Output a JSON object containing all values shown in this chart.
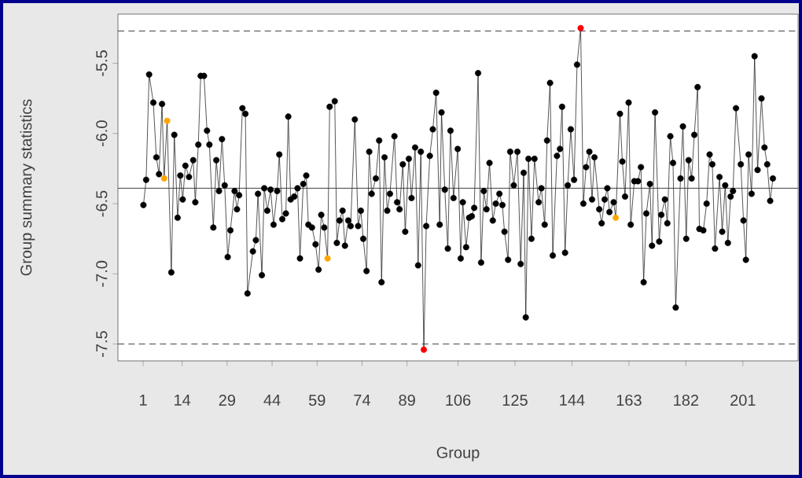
{
  "chart_data": {
    "type": "line",
    "xlabel": "Group",
    "ylabel": "Group summary statistics",
    "x": [
      1.1,
      2.0,
      3.0,
      4.4,
      5.4,
      6.3,
      7.3,
      8.0,
      9.0,
      10.4,
      11.4,
      12.5,
      13.4,
      14.2,
      15.1,
      16.3,
      17.7,
      18.4,
      19.4,
      20.2,
      21.3,
      22.3,
      23.1,
      24.4,
      25.4,
      26.3,
      27.3,
      28.2,
      29.2,
      30.1,
      31.5,
      32.3,
      33.0,
      34.1,
      35.1,
      35.8,
      37.6,
      38.6,
      39.3,
      40.6,
      41.4,
      42.4,
      43.5,
      44.5,
      45.7,
      46.4,
      47.4,
      48.6,
      49.4,
      50.2,
      51.4,
      52.5,
      53.3,
      54.4,
      55.4,
      56.1,
      57.3,
      58.5,
      59.5,
      60.4,
      61.4,
      62.5,
      63.2,
      64.9,
      65.6,
      66.5,
      67.5,
      68.3,
      69.4,
      70.2,
      71.6,
      72.7,
      73.6,
      74.4,
      75.5,
      76.4,
      77.2,
      78.6,
      79.7,
      80.5,
      81.5,
      82.4,
      83.3,
      84.8,
      85.7,
      86.5,
      87.6,
      88.4,
      89.6,
      90.5,
      91.7,
      92.7,
      93.6,
      94.6,
      95.4,
      96.6,
      97.6,
      98.7,
      99.9,
      100.5,
      101.6,
      102.6,
      103.5,
      104.5,
      105.9,
      106.9,
      107.6,
      108.7,
      109.7,
      110.6,
      111.4,
      112.7,
      113.7,
      114.6,
      115.5,
      116.5,
      117.6,
      118.6,
      119.8,
      120.8,
      121.5,
      122.7,
      123.4,
      124.6,
      125.8,
      126.9,
      127.9,
      128.6,
      129.5,
      130.5,
      131.5,
      132.9,
      133.8,
      134.9,
      135.7,
      136.7,
      137.6,
      139.0,
      140.0,
      140.7,
      141.7,
      142.6,
      143.6,
      144.7,
      145.7,
      146.9,
      147.8,
      148.7,
      149.8,
      150.7,
      151.5,
      153.1,
      153.9,
      154.9,
      155.8,
      156.5,
      157.9,
      158.6,
      160.0,
      160.8,
      161.7,
      162.9,
      163.6,
      164.8,
      166.0,
      167.0,
      167.9,
      168.8,
      170.0,
      170.7,
      171.7,
      173.1,
      173.8,
      175.0,
      175.8,
      176.8,
      177.7,
      178.6,
      180.2,
      181.0,
      182.1,
      182.9,
      183.9,
      184.8,
      185.9,
      186.5,
      187.8,
      188.9,
      189.9,
      190.8,
      191.7,
      193.2,
      194.1,
      195.1,
      196.0,
      196.9,
      197.7,
      198.7,
      200.3,
      201.2,
      202.0,
      202.9,
      203.9,
      204.9,
      205.9,
      207.2,
      208.2,
      209.1,
      210.1,
      211.0
    ],
    "values": [
      -6.51,
      -6.33,
      -5.58,
      -5.78,
      -6.17,
      -6.29,
      -5.79,
      -6.32,
      -5.91,
      -6.99,
      -6.01,
      -6.6,
      -6.3,
      -6.47,
      -6.23,
      -6.31,
      -6.19,
      -6.49,
      -6.08,
      -5.59,
      -5.59,
      -5.98,
      -6.08,
      -6.67,
      -6.19,
      -6.41,
      -6.04,
      -6.37,
      -6.88,
      -6.69,
      -6.41,
      -6.54,
      -6.44,
      -5.82,
      -5.86,
      -7.14,
      -6.84,
      -6.76,
      -6.43,
      -7.01,
      -6.39,
      -6.55,
      -6.4,
      -6.65,
      -6.41,
      -6.15,
      -6.61,
      -6.57,
      -5.88,
      -6.47,
      -6.45,
      -6.39,
      -6.89,
      -6.36,
      -6.3,
      -6.65,
      -6.67,
      -6.79,
      -6.97,
      -6.58,
      -6.67,
      -6.89,
      -5.81,
      -5.77,
      -6.78,
      -6.62,
      -6.55,
      -6.8,
      -6.62,
      -6.66,
      -5.9,
      -6.66,
      -6.55,
      -6.75,
      -6.98,
      -6.13,
      -6.43,
      -6.32,
      -6.05,
      -7.06,
      -6.17,
      -6.55,
      -6.43,
      -6.02,
      -6.49,
      -6.54,
      -6.22,
      -6.7,
      -6.18,
      -6.46,
      -6.1,
      -6.94,
      -6.13,
      -7.54,
      -6.66,
      -6.16,
      -5.97,
      -5.71,
      -6.65,
      -5.85,
      -6.4,
      -6.82,
      -5.98,
      -6.46,
      -6.11,
      -6.89,
      -6.49,
      -6.81,
      -6.6,
      -6.59,
      -6.53,
      -5.57,
      -6.92,
      -6.41,
      -6.54,
      -6.21,
      -6.62,
      -6.5,
      -6.43,
      -6.51,
      -6.7,
      -6.9,
      -6.13,
      -6.37,
      -6.13,
      -6.93,
      -6.28,
      -7.31,
      -6.18,
      -6.75,
      -6.18,
      -6.49,
      -6.39,
      -6.65,
      -6.05,
      -5.64,
      -6.87,
      -6.16,
      -6.11,
      -5.81,
      -6.85,
      -6.37,
      -5.97,
      -6.33,
      -5.51,
      -5.25,
      -6.5,
      -6.24,
      -6.13,
      -6.47,
      -6.17,
      -6.54,
      -6.64,
      -6.47,
      -6.39,
      -6.56,
      -6.49,
      -6.6,
      -5.86,
      -6.2,
      -6.45,
      -5.78,
      -6.65,
      -6.34,
      -6.34,
      -6.24,
      -7.06,
      -6.57,
      -6.36,
      -6.8,
      -5.85,
      -6.77,
      -6.58,
      -6.47,
      -6.64,
      -6.02,
      -6.21,
      -7.24,
      -6.32,
      -5.95,
      -6.75,
      -6.19,
      -6.32,
      -6.01,
      -5.67,
      -6.68,
      -6.69,
      -6.5,
      -6.15,
      -6.22,
      -6.82,
      -6.31,
      -6.7,
      -6.37,
      -6.78,
      -6.45,
      -6.41,
      -5.82,
      -6.22,
      -6.62,
      -6.9,
      -6.15,
      -6.43,
      -5.45,
      -6.26,
      -5.75,
      -6.1,
      -6.22,
      -6.48,
      -6.32
    ],
    "color": "#000000",
    "colors": [
      "#000000",
      "#000000",
      "#000000",
      "#000000",
      "#000000",
      "#000000",
      "#000000",
      "#ffa500",
      "#ffa500",
      "#000000",
      "#000000",
      "#000000",
      "#000000",
      "#000000",
      "#000000",
      "#000000",
      "#000000",
      "#000000",
      "#000000",
      "#000000",
      "#000000",
      "#000000",
      "#000000",
      "#000000",
      "#000000",
      "#000000",
      "#000000",
      "#000000",
      "#000000",
      "#000000",
      "#000000",
      "#000000",
      "#000000",
      "#000000",
      "#000000",
      "#000000",
      "#000000",
      "#000000",
      "#000000",
      "#000000",
      "#000000",
      "#000000",
      "#000000",
      "#000000",
      "#000000",
      "#000000",
      "#000000",
      "#000000",
      "#000000",
      "#000000",
      "#000000",
      "#000000",
      "#000000",
      "#000000",
      "#000000",
      "#000000",
      "#000000",
      "#000000",
      "#000000",
      "#000000",
      "#000000",
      "#ffa500",
      "#000000",
      "#000000",
      "#000000",
      "#000000",
      "#000000",
      "#000000",
      "#000000",
      "#000000",
      "#000000",
      "#000000",
      "#000000",
      "#000000",
      "#000000",
      "#000000",
      "#000000",
      "#000000",
      "#000000",
      "#000000",
      "#000000",
      "#000000",
      "#000000",
      "#000000",
      "#000000",
      "#000000",
      "#000000",
      "#000000",
      "#000000",
      "#000000",
      "#000000",
      "#000000",
      "#000000",
      "#ff0000",
      "#000000",
      "#000000",
      "#000000",
      "#000000",
      "#000000",
      "#000000",
      "#000000",
      "#000000",
      "#000000",
      "#000000",
      "#000000",
      "#000000",
      "#000000",
      "#000000",
      "#000000",
      "#000000",
      "#000000",
      "#000000",
      "#000000",
      "#000000",
      "#000000",
      "#000000",
      "#000000",
      "#000000",
      "#000000",
      "#000000",
      "#000000",
      "#000000",
      "#000000",
      "#000000",
      "#000000",
      "#000000",
      "#000000",
      "#000000",
      "#000000",
      "#000000",
      "#000000",
      "#000000",
      "#000000",
      "#000000",
      "#000000",
      "#000000",
      "#000000",
      "#000000",
      "#000000",
      "#000000",
      "#000000",
      "#000000",
      "#000000",
      "#000000",
      "#000000",
      "#ff0000",
      "#000000",
      "#000000",
      "#000000",
      "#000000",
      "#000000",
      "#000000",
      "#000000",
      "#000000",
      "#000000",
      "#000000",
      "#000000",
      "#ffa500",
      "#000000",
      "#000000",
      "#000000",
      "#000000",
      "#000000",
      "#000000",
      "#000000",
      "#000000",
      "#000000",
      "#000000",
      "#000000",
      "#000000",
      "#000000",
      "#000000",
      "#000000",
      "#000000",
      "#000000",
      "#000000",
      "#000000",
      "#000000",
      "#000000",
      "#000000",
      "#000000",
      "#000000",
      "#000000",
      "#000000",
      "#000000",
      "#000000",
      "#000000",
      "#000000",
      "#000000",
      "#000000",
      "#000000",
      "#000000",
      "#000000",
      "#000000",
      "#000000",
      "#000000",
      "#000000",
      "#000000",
      "#000000",
      "#000000",
      "#000000",
      "#000000",
      "#000000",
      "#000000",
      "#000000",
      "#000000",
      "#000000",
      "#000000",
      "#000000",
      "#000000"
    ],
    "marker": "circle",
    "xlim": [
      -7.4,
      219.4
    ],
    "xticks": [
      1,
      14,
      29,
      44,
      59,
      74,
      89,
      106,
      125,
      144,
      163,
      182,
      201
    ],
    "ylim": [
      -7.62,
      -5.15
    ],
    "yticks": [
      -5.5,
      {
        "value": -6,
        "label": "-6.0"
      },
      -6.5,
      {
        "value": -7,
        "label": "-7.0"
      },
      -7.5
    ],
    "ref_lines": [
      {
        "axis": "y",
        "value": -6.39,
        "line_style": "solid"
      },
      {
        "axis": "y",
        "value": -5.27,
        "line_style": "dashed"
      },
      {
        "axis": "y",
        "value": -7.5,
        "line_style": "dashed"
      }
    ]
  }
}
